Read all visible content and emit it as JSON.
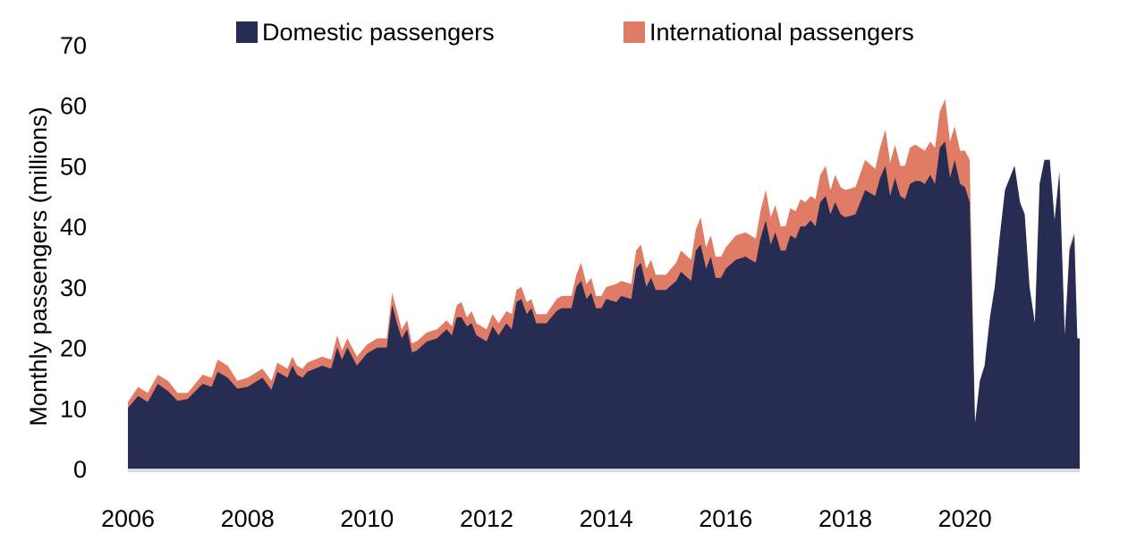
{
  "chart_data": {
    "type": "area",
    "stacked": true,
    "title": "",
    "xlabel": "",
    "ylabel": "Monthly passengers (millions)",
    "xlim": [
      2006.0,
      2021.92
    ],
    "ylim": [
      0,
      70
    ],
    "xticks": [
      "2006",
      "2008",
      "2010",
      "2012",
      "2014",
      "2016",
      "2018",
      "2020"
    ],
    "yticks": [
      "0",
      "10",
      "20",
      "30",
      "40",
      "50",
      "60",
      "70"
    ],
    "grid": false,
    "legend_position": "top",
    "colors": {
      "domestic": "#272c52",
      "international": "#e07c66",
      "baseline": "#d9d9e6"
    },
    "series": [
      {
        "name": "Domestic passengers",
        "points": [
          [
            2006.0,
            10.0
          ],
          [
            2006.17,
            12.0
          ],
          [
            2006.33,
            11.0
          ],
          [
            2006.5,
            14.0
          ],
          [
            2006.67,
            12.8
          ],
          [
            2006.83,
            11.2
          ],
          [
            2007.0,
            11.5
          ],
          [
            2007.25,
            14.0
          ],
          [
            2007.4,
            13.5
          ],
          [
            2007.5,
            16.0
          ],
          [
            2007.67,
            15.0
          ],
          [
            2007.83,
            13.2
          ],
          [
            2008.0,
            13.5
          ],
          [
            2008.25,
            15.0
          ],
          [
            2008.4,
            13.0
          ],
          [
            2008.5,
            16.0
          ],
          [
            2008.67,
            15.0
          ],
          [
            2008.75,
            17.0
          ],
          [
            2008.83,
            15.5
          ],
          [
            2008.92,
            15.0
          ],
          [
            2009.0,
            16.0
          ],
          [
            2009.25,
            17.0
          ],
          [
            2009.4,
            16.5
          ],
          [
            2009.5,
            20.0
          ],
          [
            2009.58,
            18.0
          ],
          [
            2009.67,
            20.0
          ],
          [
            2009.83,
            17.0
          ],
          [
            2010.0,
            19.0
          ],
          [
            2010.17,
            20.0
          ],
          [
            2010.33,
            20.0
          ],
          [
            2010.42,
            27.0
          ],
          [
            2010.5,
            24.0
          ],
          [
            2010.58,
            21.5
          ],
          [
            2010.67,
            23.0
          ],
          [
            2010.75,
            19.2
          ],
          [
            2010.83,
            19.5
          ],
          [
            2011.0,
            21.0
          ],
          [
            2011.17,
            21.5
          ],
          [
            2011.33,
            23.0
          ],
          [
            2011.42,
            22.0
          ],
          [
            2011.5,
            25.0
          ],
          [
            2011.58,
            25.0
          ],
          [
            2011.67,
            23.5
          ],
          [
            2011.75,
            24.0
          ],
          [
            2011.83,
            22.0
          ],
          [
            2012.0,
            21.0
          ],
          [
            2012.1,
            23.5
          ],
          [
            2012.2,
            22.0
          ],
          [
            2012.33,
            24.0
          ],
          [
            2012.42,
            23.0
          ],
          [
            2012.5,
            27.5
          ],
          [
            2012.58,
            28.0
          ],
          [
            2012.67,
            25.5
          ],
          [
            2012.75,
            26.5
          ],
          [
            2012.83,
            24.0
          ],
          [
            2013.0,
            24.0
          ],
          [
            2013.17,
            26.0
          ],
          [
            2013.25,
            26.5
          ],
          [
            2013.42,
            26.5
          ],
          [
            2013.5,
            30.0
          ],
          [
            2013.58,
            31.0
          ],
          [
            2013.67,
            28.0
          ],
          [
            2013.75,
            29.0
          ],
          [
            2013.83,
            26.5
          ],
          [
            2013.92,
            26.5
          ],
          [
            2014.0,
            28.0
          ],
          [
            2014.17,
            27.5
          ],
          [
            2014.25,
            28.5
          ],
          [
            2014.42,
            28.0
          ],
          [
            2014.5,
            33.0
          ],
          [
            2014.58,
            34.0
          ],
          [
            2014.67,
            30.0
          ],
          [
            2014.75,
            31.5
          ],
          [
            2014.83,
            29.5
          ],
          [
            2015.0,
            29.5
          ],
          [
            2015.17,
            31.0
          ],
          [
            2015.25,
            32.5
          ],
          [
            2015.42,
            31.0
          ],
          [
            2015.5,
            36.0
          ],
          [
            2015.58,
            37.0
          ],
          [
            2015.67,
            33.0
          ],
          [
            2015.75,
            35.0
          ],
          [
            2015.83,
            31.5
          ],
          [
            2015.92,
            31.5
          ],
          [
            2016.0,
            33.0
          ],
          [
            2016.17,
            34.5
          ],
          [
            2016.33,
            35.0
          ],
          [
            2016.5,
            34.0
          ],
          [
            2016.58,
            38.0
          ],
          [
            2016.67,
            41.0
          ],
          [
            2016.75,
            37.0
          ],
          [
            2016.83,
            39.0
          ],
          [
            2016.92,
            36.0
          ],
          [
            2017.0,
            36.0
          ],
          [
            2017.08,
            38.5
          ],
          [
            2017.17,
            38.0
          ],
          [
            2017.25,
            40.0
          ],
          [
            2017.33,
            40.0
          ],
          [
            2017.42,
            41.0
          ],
          [
            2017.5,
            40.0
          ],
          [
            2017.58,
            44.0
          ],
          [
            2017.67,
            45.0
          ],
          [
            2017.75,
            42.0
          ],
          [
            2017.83,
            44.0
          ],
          [
            2017.92,
            42.0
          ],
          [
            2018.0,
            41.5
          ],
          [
            2018.17,
            42.0
          ],
          [
            2018.33,
            46.0
          ],
          [
            2018.5,
            45.0
          ],
          [
            2018.58,
            48.0
          ],
          [
            2018.67,
            50.0
          ],
          [
            2018.75,
            45.0
          ],
          [
            2018.83,
            48.0
          ],
          [
            2018.92,
            45.0
          ],
          [
            2019.0,
            44.5
          ],
          [
            2019.08,
            47.0
          ],
          [
            2019.17,
            47.5
          ],
          [
            2019.25,
            47.5
          ],
          [
            2019.33,
            47.0
          ],
          [
            2019.42,
            48.5
          ],
          [
            2019.5,
            47.0
          ],
          [
            2019.58,
            53.0
          ],
          [
            2019.67,
            54.0
          ],
          [
            2019.75,
            48.0
          ],
          [
            2019.83,
            51.0
          ],
          [
            2019.92,
            47.0
          ],
          [
            2020.0,
            46.5
          ],
          [
            2020.08,
            44.0
          ],
          [
            2020.17,
            7.5
          ],
          [
            2020.25,
            14.5
          ],
          [
            2020.33,
            17.0
          ],
          [
            2020.42,
            25.0
          ],
          [
            2020.5,
            30.0
          ],
          [
            2020.58,
            38.0
          ],
          [
            2020.67,
            46.0
          ],
          [
            2020.75,
            48.0
          ],
          [
            2020.83,
            50.0
          ],
          [
            2020.92,
            44.0
          ],
          [
            2021.0,
            42.0
          ],
          [
            2021.08,
            30.0
          ],
          [
            2021.17,
            24.0
          ],
          [
            2021.25,
            47.0
          ],
          [
            2021.33,
            51.0
          ],
          [
            2021.42,
            51.0
          ],
          [
            2021.5,
            41.0
          ],
          [
            2021.58,
            49.0
          ],
          [
            2021.67,
            22.0
          ],
          [
            2021.75,
            36.0
          ],
          [
            2021.83,
            38.5
          ],
          [
            2021.88,
            21.5
          ],
          [
            2021.92,
            21.5
          ]
        ]
      },
      {
        "name": "International passengers",
        "points": [
          [
            2006.0,
            11.0
          ],
          [
            2006.17,
            13.5
          ],
          [
            2006.33,
            12.5
          ],
          [
            2006.5,
            15.5
          ],
          [
            2006.67,
            14.5
          ],
          [
            2006.83,
            12.5
          ],
          [
            2007.0,
            12.5
          ],
          [
            2007.25,
            15.5
          ],
          [
            2007.4,
            15.0
          ],
          [
            2007.5,
            18.0
          ],
          [
            2007.67,
            17.0
          ],
          [
            2007.83,
            14.5
          ],
          [
            2008.0,
            15.0
          ],
          [
            2008.25,
            16.5
          ],
          [
            2008.4,
            14.5
          ],
          [
            2008.5,
            17.5
          ],
          [
            2008.67,
            16.5
          ],
          [
            2008.75,
            18.5
          ],
          [
            2008.83,
            17.0
          ],
          [
            2008.92,
            16.5
          ],
          [
            2009.0,
            17.5
          ],
          [
            2009.25,
            18.5
          ],
          [
            2009.4,
            18.0
          ],
          [
            2009.5,
            22.0
          ],
          [
            2009.58,
            19.5
          ],
          [
            2009.67,
            21.5
          ],
          [
            2009.83,
            18.5
          ],
          [
            2010.0,
            20.5
          ],
          [
            2010.17,
            21.5
          ],
          [
            2010.33,
            21.5
          ],
          [
            2010.42,
            29.0
          ],
          [
            2010.5,
            26.0
          ],
          [
            2010.58,
            23.0
          ],
          [
            2010.67,
            24.5
          ],
          [
            2010.75,
            20.7
          ],
          [
            2010.83,
            21.0
          ],
          [
            2011.0,
            22.5
          ],
          [
            2011.17,
            23.0
          ],
          [
            2011.33,
            24.5
          ],
          [
            2011.42,
            23.5
          ],
          [
            2011.5,
            27.0
          ],
          [
            2011.58,
            27.5
          ],
          [
            2011.67,
            25.0
          ],
          [
            2011.75,
            26.0
          ],
          [
            2011.83,
            24.0
          ],
          [
            2012.0,
            23.0
          ],
          [
            2012.1,
            25.5
          ],
          [
            2012.2,
            24.0
          ],
          [
            2012.33,
            26.0
          ],
          [
            2012.42,
            25.5
          ],
          [
            2012.5,
            29.5
          ],
          [
            2012.58,
            30.0
          ],
          [
            2012.67,
            27.5
          ],
          [
            2012.75,
            28.0
          ],
          [
            2012.83,
            25.5
          ],
          [
            2013.0,
            25.5
          ],
          [
            2013.17,
            28.0
          ],
          [
            2013.25,
            28.5
          ],
          [
            2013.42,
            28.5
          ],
          [
            2013.5,
            32.0
          ],
          [
            2013.58,
            34.0
          ],
          [
            2013.67,
            30.5
          ],
          [
            2013.75,
            31.5
          ],
          [
            2013.83,
            28.5
          ],
          [
            2013.92,
            28.5
          ],
          [
            2014.0,
            30.0
          ],
          [
            2014.17,
            30.5
          ],
          [
            2014.25,
            31.0
          ],
          [
            2014.42,
            30.5
          ],
          [
            2014.5,
            36.0
          ],
          [
            2014.58,
            37.0
          ],
          [
            2014.67,
            33.0
          ],
          [
            2014.75,
            34.5
          ],
          [
            2014.83,
            32.0
          ],
          [
            2015.0,
            32.0
          ],
          [
            2015.17,
            34.0
          ],
          [
            2015.25,
            36.0
          ],
          [
            2015.42,
            34.5
          ],
          [
            2015.5,
            39.5
          ],
          [
            2015.58,
            41.5
          ],
          [
            2015.67,
            36.5
          ],
          [
            2015.75,
            38.5
          ],
          [
            2015.83,
            35.0
          ],
          [
            2015.92,
            35.0
          ],
          [
            2016.0,
            36.5
          ],
          [
            2016.17,
            38.5
          ],
          [
            2016.33,
            39.0
          ],
          [
            2016.5,
            38.0
          ],
          [
            2016.58,
            42.5
          ],
          [
            2016.67,
            46.0
          ],
          [
            2016.75,
            41.5
          ],
          [
            2016.83,
            43.5
          ],
          [
            2016.92,
            40.0
          ],
          [
            2017.0,
            40.0
          ],
          [
            2017.08,
            43.0
          ],
          [
            2017.17,
            42.5
          ],
          [
            2017.25,
            44.5
          ],
          [
            2017.33,
            44.0
          ],
          [
            2017.42,
            45.0
          ],
          [
            2017.5,
            44.5
          ],
          [
            2017.58,
            48.5
          ],
          [
            2017.67,
            50.0
          ],
          [
            2017.75,
            46.0
          ],
          [
            2017.83,
            48.5
          ],
          [
            2017.92,
            46.5
          ],
          [
            2018.0,
            46.0
          ],
          [
            2018.17,
            46.5
          ],
          [
            2018.33,
            51.0
          ],
          [
            2018.5,
            49.5
          ],
          [
            2018.58,
            53.0
          ],
          [
            2018.67,
            56.0
          ],
          [
            2018.75,
            50.5
          ],
          [
            2018.83,
            53.5
          ],
          [
            2018.92,
            50.0
          ],
          [
            2019.0,
            50.0
          ],
          [
            2019.08,
            53.0
          ],
          [
            2019.17,
            53.5
          ],
          [
            2019.25,
            53.0
          ],
          [
            2019.33,
            52.5
          ],
          [
            2019.42,
            54.0
          ],
          [
            2019.5,
            53.0
          ],
          [
            2019.58,
            59.0
          ],
          [
            2019.67,
            61.0
          ],
          [
            2019.75,
            54.0
          ],
          [
            2019.83,
            56.5
          ],
          [
            2019.92,
            52.5
          ],
          [
            2020.0,
            52.5
          ],
          [
            2020.08,
            51.0
          ],
          [
            2020.17,
            7.5
          ],
          [
            2020.25,
            14.5
          ],
          [
            2020.33,
            17.0
          ],
          [
            2020.42,
            25.0
          ],
          [
            2020.5,
            30.0
          ],
          [
            2020.58,
            38.0
          ],
          [
            2020.67,
            46.0
          ],
          [
            2020.75,
            48.0
          ],
          [
            2020.83,
            50.0
          ],
          [
            2020.92,
            44.0
          ],
          [
            2021.0,
            42.0
          ],
          [
            2021.08,
            30.0
          ],
          [
            2021.17,
            24.0
          ],
          [
            2021.25,
            47.0
          ],
          [
            2021.33,
            51.0
          ],
          [
            2021.42,
            51.0
          ],
          [
            2021.5,
            41.0
          ],
          [
            2021.58,
            49.0
          ],
          [
            2021.67,
            22.0
          ],
          [
            2021.75,
            36.5
          ],
          [
            2021.83,
            39.0
          ],
          [
            2021.88,
            21.5
          ],
          [
            2021.92,
            21.5
          ]
        ]
      }
    ]
  }
}
